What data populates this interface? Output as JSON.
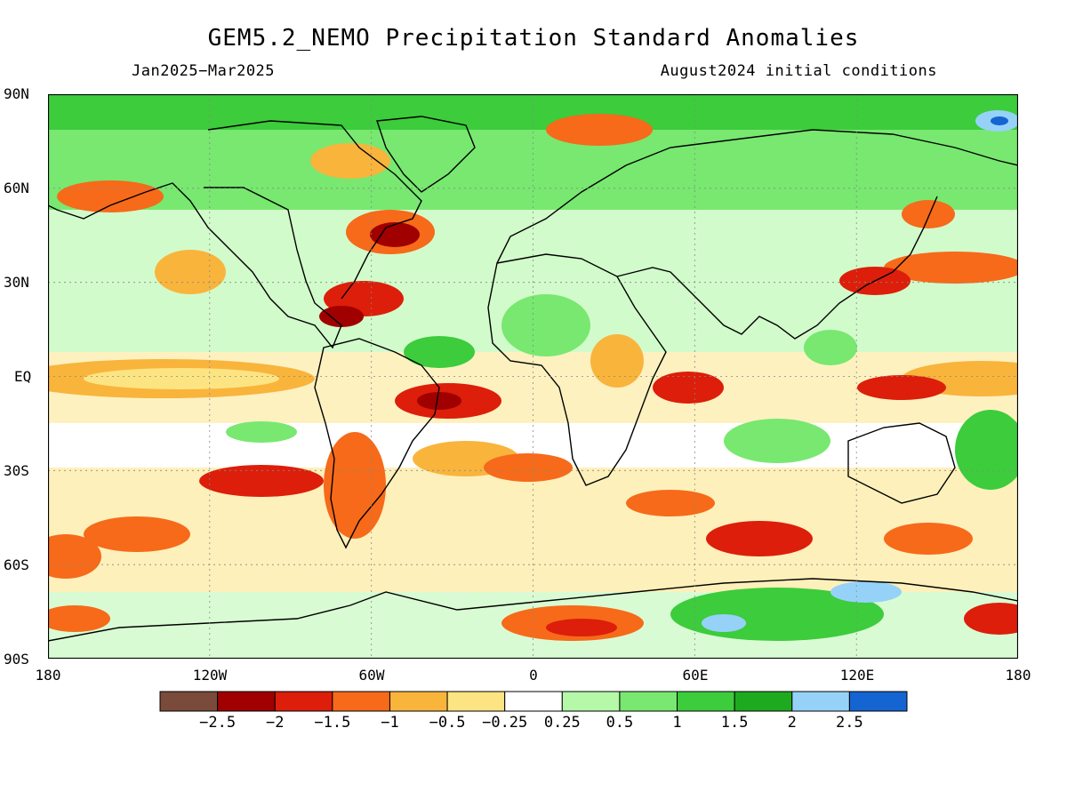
{
  "header": {
    "title": "GEM5.2_NEMO Precipitation Standard Anomalies",
    "period": "Jan2025−Mar2025",
    "initial_conditions": "August2024 initial conditions"
  },
  "axes": {
    "lat_labels": [
      "90N",
      "60N",
      "30N",
      "EQ",
      "30S",
      "60S",
      "90S"
    ],
    "lon_labels": [
      "180",
      "120W",
      "60W",
      "0",
      "60E",
      "120E",
      "180"
    ]
  },
  "legend": {
    "colors": [
      "#7a4a3a",
      "#a00000",
      "#dc1e0a",
      "#f66a1a",
      "#f9b43c",
      "#fde482",
      "#ffffff",
      "#b4f8a8",
      "#78e870",
      "#3ccc3c",
      "#1eaa1e",
      "#96d2f8",
      "#1464d2"
    ],
    "labels": [
      "−2.5",
      "−2",
      "−1.5",
      "−1",
      "−0.5",
      "−0.25",
      "0.25",
      "0.5",
      "1",
      "1.5",
      "2",
      "2.5"
    ]
  },
  "map_data": {
    "type": "global precipitation standard anomaly map",
    "projection": "equirectangular",
    "lon_range": [
      -180,
      180
    ],
    "lat_range": [
      -90,
      90
    ],
    "colorbar_min": -2.5,
    "colorbar_max": 2.5,
    "coastlines": true,
    "gridlines": "dotted"
  }
}
